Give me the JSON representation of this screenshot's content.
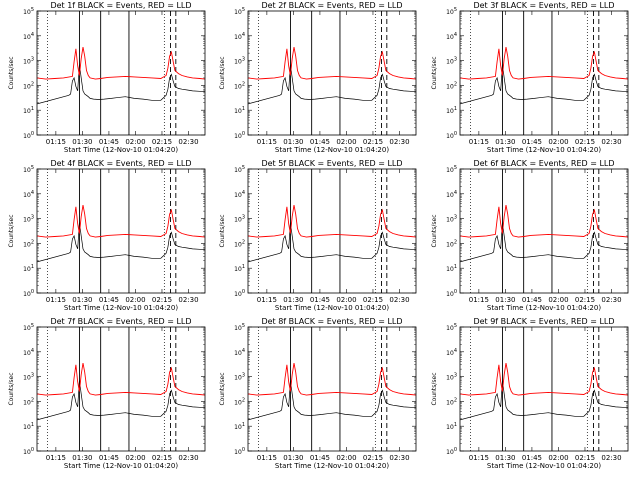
{
  "figure": {
    "colors": {
      "background": "#ffffff",
      "events": "#000000",
      "lld": "#ff0000",
      "frame": "#000000"
    }
  },
  "chart_data": [
    {
      "panel": "1f",
      "title": "Det 1f BLACK = Events, RED = LLD"
    },
    {
      "panel": "2f",
      "title": "Det 2f BLACK = Events, RED = LLD"
    },
    {
      "panel": "3f",
      "title": "Det 3f BLACK = Events, RED = LLD"
    },
    {
      "panel": "4f",
      "title": "Det 4f BLACK = Events, RED = LLD"
    },
    {
      "panel": "5f",
      "title": "Det 5f BLACK = Events, RED = LLD"
    },
    {
      "panel": "6f",
      "title": "Det 6f BLACK = Events, RED = LLD"
    },
    {
      "panel": "7f",
      "title": "Det 7f BLACK = Events, RED = LLD"
    },
    {
      "panel": "8f",
      "title": "Det 8f BLACK = Events, RED = LLD"
    },
    {
      "panel": "9f",
      "title": "Det 9f BLACK = Events, RED = LLD"
    }
  ],
  "common": {
    "type": "line",
    "ylabel": "Counts/sec",
    "xlabel": "Start Time (12-Nov-10 01:04:20)",
    "yscale": "log",
    "ylim": [
      1,
      100000
    ],
    "ytick_labels": [
      "10^0",
      "10^1",
      "10^2",
      "10^3",
      "10^4",
      "10^5"
    ],
    "xlim_minutes_after_start": [
      0,
      95
    ],
    "xtick_labels": [
      "01:15",
      "01:30",
      "01:45",
      "02:00",
      "02:15",
      "02:30"
    ],
    "xtick_minutes_after_start": [
      10.67,
      25.67,
      40.67,
      55.67,
      70.67,
      85.67
    ],
    "dotted_vlines_minutes": [
      6,
      72
    ],
    "solid_vlines_minutes": [
      24,
      36,
      52
    ],
    "dashed_vlines_minutes": [
      75.5,
      78.5
    ],
    "series": [
      {
        "name": "Events",
        "color": "#000000",
        "x": [
          0,
          18,
          19,
          20,
          21,
          22,
          23,
          24,
          25,
          26,
          27,
          28,
          29,
          30,
          32,
          35,
          38,
          42,
          45,
          50,
          55,
          60,
          65,
          70,
          73,
          74,
          75,
          76,
          77,
          78,
          80,
          82,
          85,
          88,
          92,
          95
        ],
        "y": [
          18,
          40,
          45,
          150,
          200,
          90,
          60,
          700,
          200,
          60,
          45,
          40,
          35,
          30,
          28,
          27,
          28,
          30,
          32,
          35,
          30,
          28,
          25,
          25,
          40,
          70,
          200,
          280,
          150,
          90,
          75,
          70,
          65,
          60,
          58,
          55
        ]
      },
      {
        "name": "LLD",
        "color": "#ff0000",
        "x": [
          0,
          5,
          10,
          15,
          20,
          21,
          22,
          23,
          24,
          25,
          26,
          27,
          28,
          29,
          30,
          33,
          36,
          40,
          45,
          50,
          55,
          60,
          65,
          70,
          73,
          74,
          75,
          76,
          77,
          78,
          80,
          82,
          85,
          88,
          92,
          95
        ],
        "y": [
          200,
          180,
          190,
          200,
          230,
          900,
          3000,
          600,
          250,
          1200,
          3500,
          1500,
          400,
          250,
          200,
          180,
          190,
          210,
          220,
          230,
          220,
          210,
          200,
          190,
          250,
          500,
          1500,
          2200,
          900,
          400,
          300,
          250,
          220,
          200,
          190,
          180
        ]
      }
    ]
  }
}
